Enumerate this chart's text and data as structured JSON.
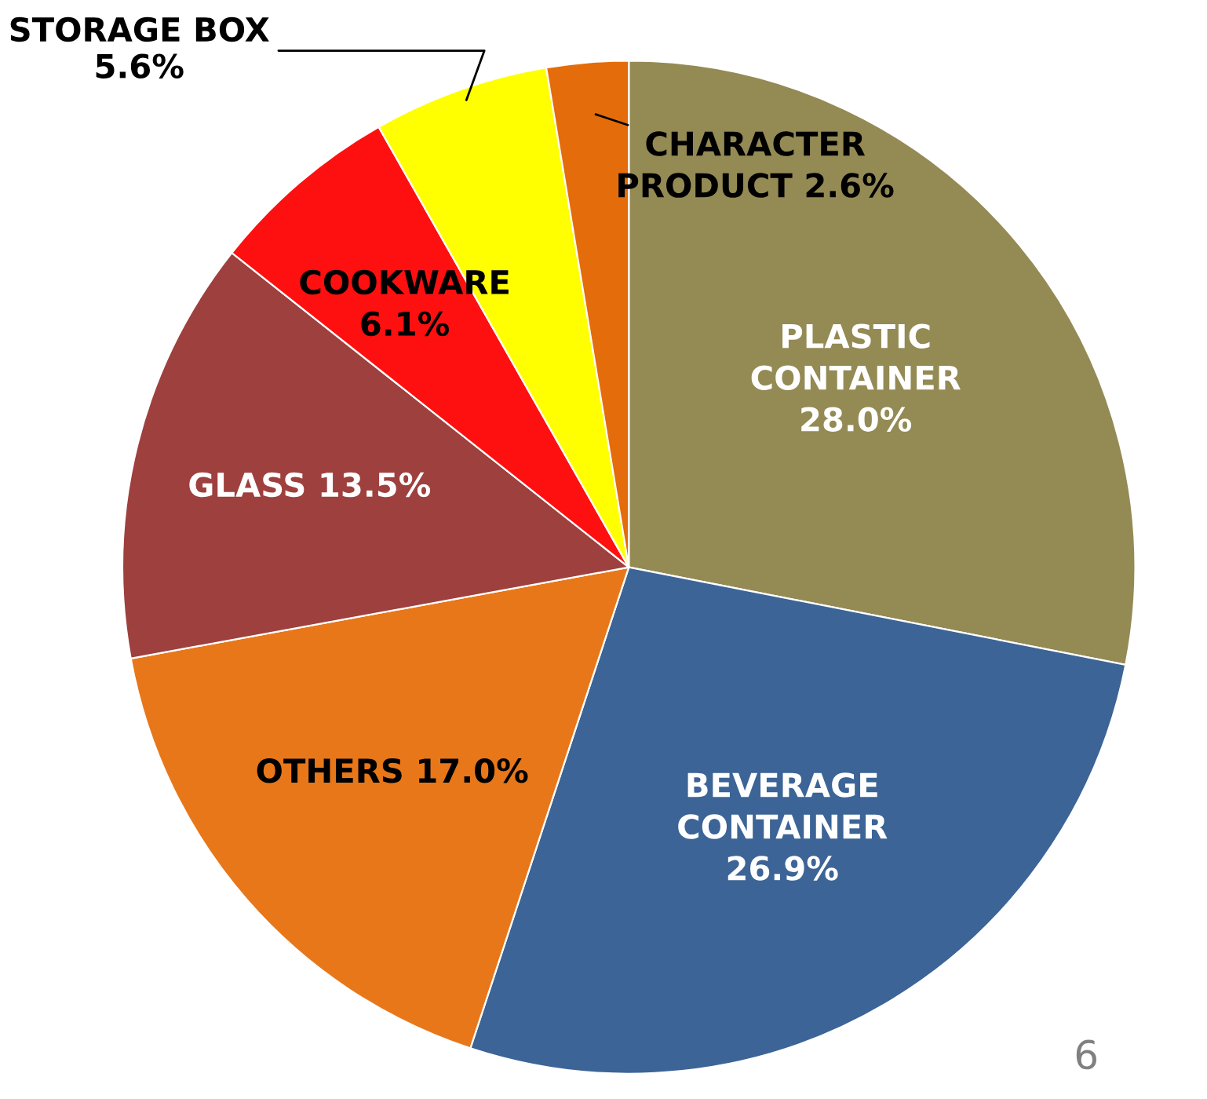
{
  "chart_data": {
    "type": "pie",
    "categories": [
      "PLASTIC\nCONTAINER",
      "BEVERAGE\nCONTAINER",
      "OTHERS",
      "GLASS",
      "COOKWARE",
      "STORAGE BOX",
      "CHARACTER\nPRODUCT"
    ],
    "values": [
      28.0,
      26.9,
      17.0,
      13.5,
      6.1,
      5.6,
      2.6
    ],
    "value_labels": [
      "28.0%",
      "26.9%",
      "17.0%",
      "13.5%",
      "6.1%",
      "5.6%",
      "2.6%"
    ],
    "colors": [
      "#948a54",
      "#3c6496",
      "#e8771a",
      "#9e403e",
      "#ff1010",
      "#ffff00",
      "#e46c0a"
    ],
    "annotations": [
      "6"
    ]
  }
}
